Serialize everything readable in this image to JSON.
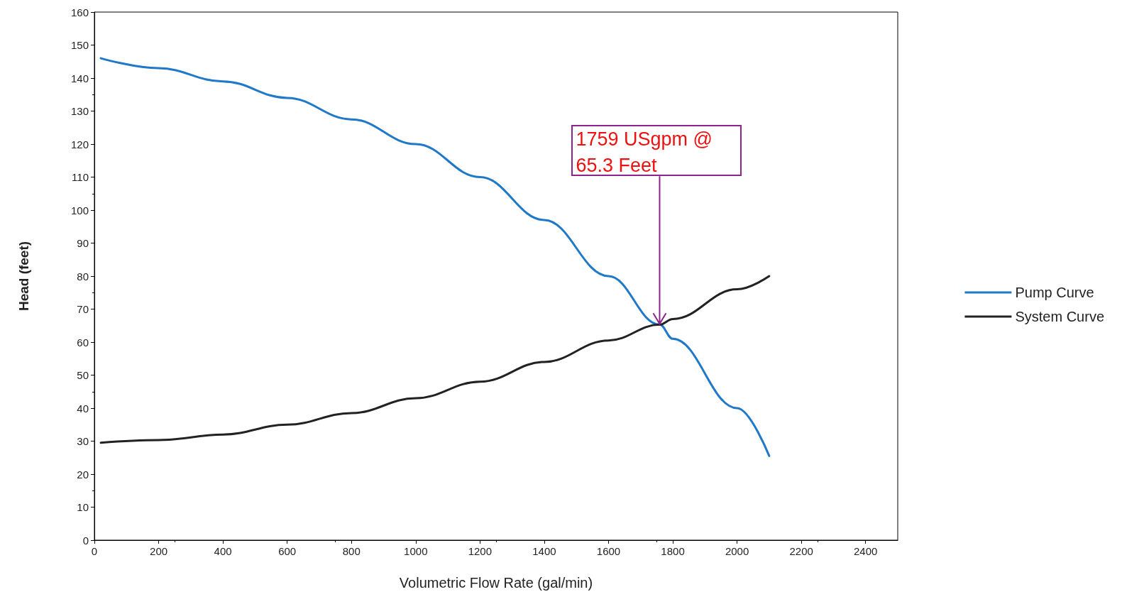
{
  "chart_data": {
    "type": "line",
    "xlabel": "Volumetric Flow Rate (gal/min)",
    "ylabel": "Head (feet)",
    "xlim": [
      0,
      2500
    ],
    "xticks": [
      0,
      200,
      400,
      600,
      800,
      1000,
      1200,
      1400,
      1600,
      1800,
      2000,
      2200,
      2400
    ],
    "ylim": [
      0,
      160
    ],
    "yticks": [
      0,
      10,
      20,
      30,
      40,
      50,
      60,
      70,
      80,
      90,
      100,
      110,
      120,
      130,
      140,
      150,
      160
    ],
    "grid": false,
    "legend": "right",
    "marker": "none",
    "line_style": "solid",
    "annotations": [
      {
        "text": "1759 USgpm @\n65.3 Feet",
        "x": 1759,
        "y": 65.3
      }
    ],
    "series": [
      {
        "name": "Pump Curve",
        "color": "#1f78c8",
        "x": [
          20,
          200,
          400,
          600,
          800,
          1000,
          1200,
          1400,
          1600,
          1759,
          1800,
          2000,
          2100
        ],
        "values": [
          146,
          143,
          139,
          134,
          127.5,
          120,
          110,
          97,
          80,
          65.3,
          61,
          40,
          25.5
        ]
      },
      {
        "name": "System Curve",
        "color": "#222222",
        "x": [
          20,
          200,
          400,
          600,
          800,
          1000,
          1200,
          1400,
          1600,
          1759,
          1800,
          2000,
          2100
        ],
        "values": [
          29.5,
          30.3,
          32,
          35,
          38.5,
          43,
          48,
          54,
          60.5,
          65.3,
          67,
          76,
          80
        ]
      }
    ]
  }
}
